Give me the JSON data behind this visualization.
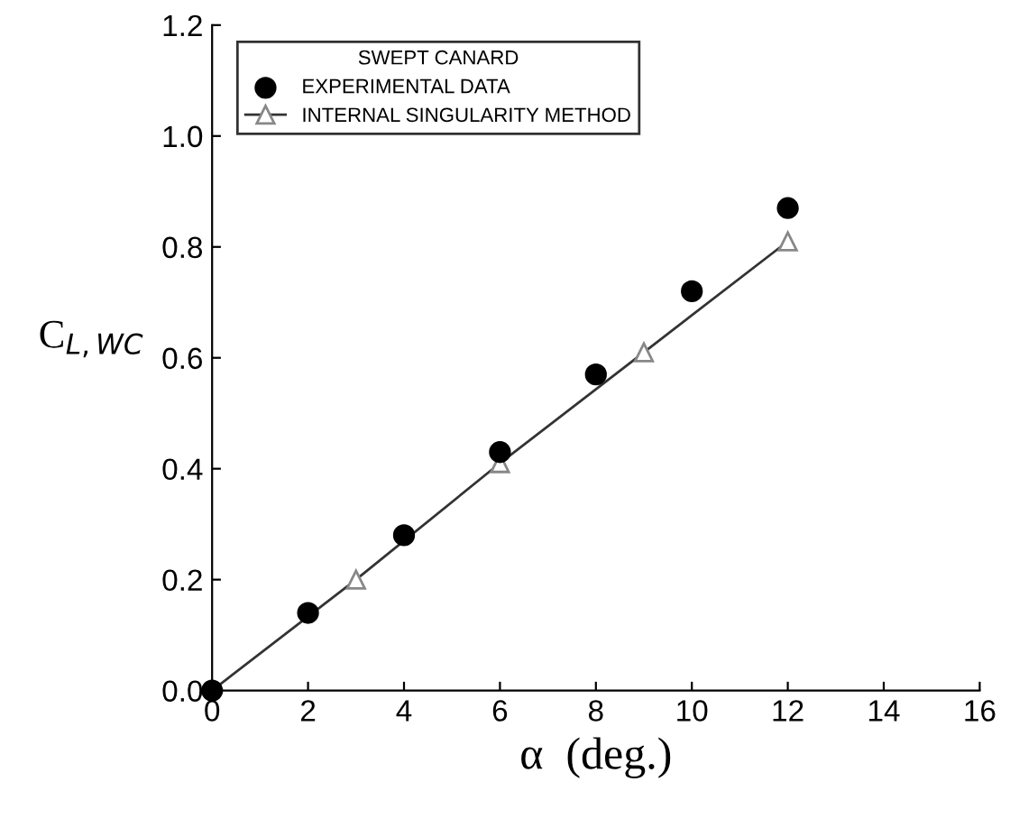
{
  "chart_data": {
    "type": "line",
    "legend_title": "SWEPT CANARD",
    "xlabel": "α  (deg.)",
    "ylabel": "C$_{L,WC}$",
    "xlim": [
      0,
      16
    ],
    "xticks": [
      0,
      2,
      4,
      6,
      8,
      10,
      12,
      14,
      16
    ],
    "ylim": [
      0,
      1.2
    ],
    "yticks": [
      "0.0",
      0.2,
      0.4,
      0.6,
      0.8,
      "1.0",
      1.2
    ],
    "grid": false,
    "legend": "top left",
    "series": [
      {
        "name": "EXPERIMENTAL DATA",
        "type": "scatter",
        "marker": "circle",
        "color": "#000000",
        "x": [
          0,
          2,
          4,
          6,
          8,
          10,
          12
        ],
        "values": [
          0,
          0.14,
          0.28,
          0.43,
          0.57,
          0.72,
          0.87
        ]
      },
      {
        "name": "INTERNAL SINGULARITY METHOD",
        "marker": "triangle",
        "color": "#333333",
        "x": [
          0,
          3,
          6,
          9,
          12
        ],
        "values": [
          0,
          0.2,
          0.41,
          0.61,
          0.81
        ]
      }
    ]
  }
}
